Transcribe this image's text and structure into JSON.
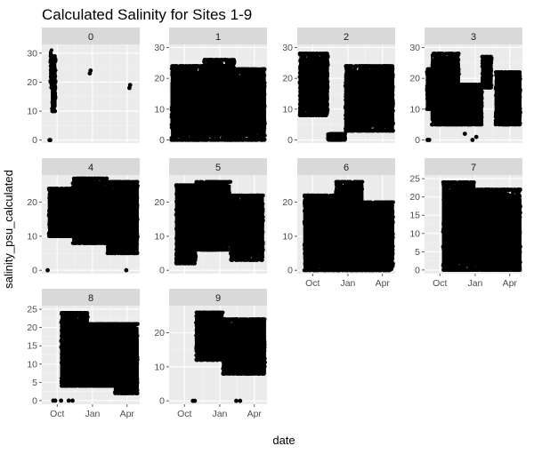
{
  "chart_data": {
    "type": "scatter",
    "title": "Calculated Salinity for Sites 1-9",
    "xlabel": "date",
    "ylabel": "salinity_psu_calculated",
    "x_ticks": [
      "Oct",
      "Jan",
      "Apr"
    ],
    "x_tick_positions_days": [
      30,
      122,
      212
    ],
    "x_range_days": [
      -10,
      245
    ],
    "facets": [
      {
        "label": "0",
        "yticks": [
          0,
          10,
          20,
          30
        ],
        "ylim": [
          -1,
          33
        ],
        "runs": [
          {
            "x0": 12,
            "x1": 16,
            "y0": 18,
            "y1": 31
          },
          {
            "x0": 16,
            "x1": 26,
            "y0": 10,
            "y1": 29
          }
        ],
        "points": [
          [
            10,
            0
          ],
          [
            12,
            0
          ],
          [
            115,
            23
          ],
          [
            117,
            24
          ],
          [
            218,
            18
          ],
          [
            220,
            19
          ]
        ]
      },
      {
        "label": "1",
        "yticks": [
          0,
          10,
          20,
          30
        ],
        "ylim": [
          -1,
          31
        ],
        "runs": [
          {
            "x0": -4,
            "x1": 80,
            "y0": 0,
            "y1": 24
          },
          {
            "x0": 80,
            "x1": 160,
            "y0": 0,
            "y1": 26
          },
          {
            "x0": 160,
            "x1": 240,
            "y0": 0,
            "y1": 23
          }
        ],
        "points": []
      },
      {
        "label": "2",
        "yticks": [
          0,
          10,
          20,
          30
        ],
        "ylim": [
          -1,
          31
        ],
        "runs": [
          {
            "x0": -4,
            "x1": 70,
            "y0": 8,
            "y1": 28
          },
          {
            "x0": 70,
            "x1": 115,
            "y0": 0,
            "y1": 2
          },
          {
            "x0": 115,
            "x1": 240,
            "y0": 3,
            "y1": 24
          }
        ],
        "points": []
      },
      {
        "label": "3",
        "yticks": [
          0,
          10,
          20,
          30
        ],
        "ylim": [
          -1,
          31
        ],
        "runs": [
          {
            "x0": -4,
            "x1": 8,
            "y0": 10,
            "y1": 23
          },
          {
            "x0": 8,
            "x1": 80,
            "y0": 5,
            "y1": 28
          },
          {
            "x0": 80,
            "x1": 140,
            "y0": 5,
            "y1": 18
          },
          {
            "x0": 140,
            "x1": 165,
            "y0": 17,
            "y1": 27
          },
          {
            "x0": 175,
            "x1": 240,
            "y0": 5,
            "y1": 22
          }
        ],
        "points": [
          [
            -2,
            0
          ],
          [
            2,
            0
          ],
          [
            95,
            2
          ],
          [
            115,
            0
          ],
          [
            125,
            1
          ]
        ]
      },
      {
        "label": "4",
        "yticks": [
          0,
          10,
          20
        ],
        "ylim": [
          -1,
          28
        ],
        "runs": [
          {
            "x0": 8,
            "x1": 70,
            "y0": 10,
            "y1": 24
          },
          {
            "x0": 70,
            "x1": 160,
            "y0": 8,
            "y1": 27
          },
          {
            "x0": 160,
            "x1": 240,
            "y0": 5,
            "y1": 26
          }
        ],
        "points": [
          [
            5,
            0
          ],
          [
            210,
            0
          ]
        ]
      },
      {
        "label": "5",
        "yticks": [
          0,
          10,
          20
        ],
        "ylim": [
          -1,
          28
        ],
        "runs": [
          {
            "x0": 8,
            "x1": 60,
            "y0": 2,
            "y1": 25
          },
          {
            "x0": 60,
            "x1": 150,
            "y0": 6,
            "y1": 26
          },
          {
            "x0": 150,
            "x1": 235,
            "y0": 3,
            "y1": 22
          }
        ],
        "points": []
      },
      {
        "label": "6",
        "yticks": [
          0,
          10,
          20
        ],
        "ylim": [
          -1,
          28
        ],
        "runs": [
          {
            "x0": 8,
            "x1": 90,
            "y0": 0,
            "y1": 22
          },
          {
            "x0": 90,
            "x1": 160,
            "y0": 0,
            "y1": 26
          },
          {
            "x0": 160,
            "x1": 240,
            "y0": 0,
            "y1": 20
          }
        ],
        "points": []
      },
      {
        "label": "7",
        "yticks": [
          0,
          5,
          10,
          15,
          20,
          25
        ],
        "ylim": [
          -1,
          26
        ],
        "runs": [
          {
            "x0": 38,
            "x1": 120,
            "y0": 0,
            "y1": 24
          },
          {
            "x0": 120,
            "x1": 240,
            "y0": 0,
            "y1": 22
          }
        ],
        "points": []
      },
      {
        "label": "8",
        "yticks": [
          0,
          5,
          10,
          15,
          20,
          25
        ],
        "ylim": [
          -1,
          26
        ],
        "runs": [
          {
            "x0": 40,
            "x1": 110,
            "y0": 4,
            "y1": 24
          },
          {
            "x0": 110,
            "x1": 180,
            "y0": 4,
            "y1": 21
          },
          {
            "x0": 180,
            "x1": 240,
            "y0": 2,
            "y1": 21
          }
        ],
        "points": [
          [
            20,
            0
          ],
          [
            25,
            0
          ],
          [
            40,
            0
          ],
          [
            60,
            0
          ],
          [
            70,
            0
          ]
        ]
      },
      {
        "label": "9",
        "yticks": [
          0,
          10,
          20
        ],
        "ylim": [
          -1,
          28
        ],
        "runs": [
          {
            "x0": 60,
            "x1": 130,
            "y0": 12,
            "y1": 26
          },
          {
            "x0": 130,
            "x1": 240,
            "y0": 8,
            "y1": 24
          }
        ],
        "points": [
          [
            52,
            0
          ],
          [
            57,
            0
          ],
          [
            165,
            0
          ],
          [
            175,
            0
          ]
        ]
      }
    ]
  }
}
